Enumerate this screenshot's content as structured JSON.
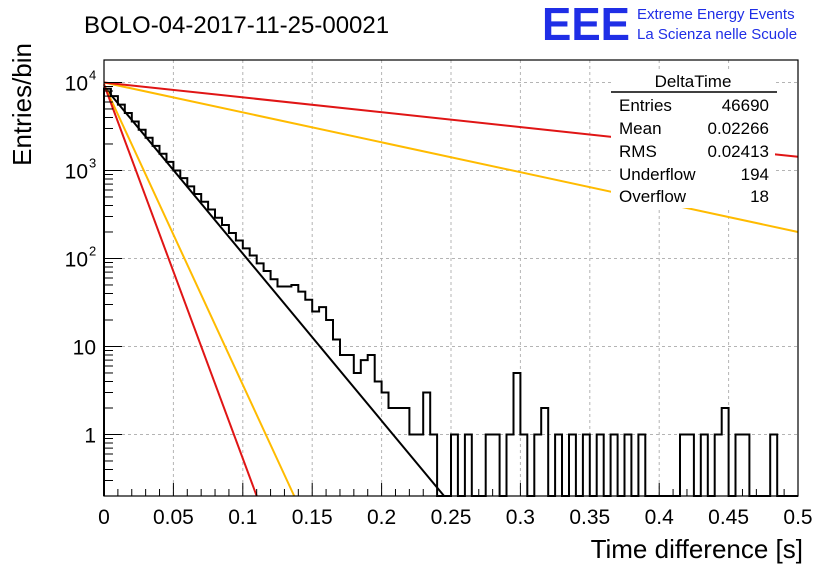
{
  "page": {
    "title": "BOLO-04-2017-11-25-00021"
  },
  "brand": {
    "logo_text": "EEE",
    "line1": "Extreme Energy Events",
    "line2": "La Scienza nelle Scuole",
    "color": "#1f2ee6"
  },
  "stats": {
    "title": "DeltaTime",
    "rows": [
      {
        "label": "Entries",
        "value": "46690"
      },
      {
        "label": "Mean",
        "value": "0.02266"
      },
      {
        "label": "RMS",
        "value": "0.02413"
      },
      {
        "label": "Underflow",
        "value": "194"
      },
      {
        "label": "Overflow",
        "value": "18"
      }
    ]
  },
  "chart_data": {
    "type": "line",
    "title": "BOLO-04-2017-11-25-00021",
    "xlabel": "Time difference [s]",
    "ylabel": "Entries/bin",
    "xlim": [
      0,
      0.5
    ],
    "ylim": [
      0.2,
      18000
    ],
    "yscale": "log",
    "grid": true,
    "xticks": [
      "0",
      "0.05",
      "0.1",
      "0.15",
      "0.2",
      "0.25",
      "0.3",
      "0.35",
      "0.4",
      "0.45",
      "0.5"
    ],
    "yticks": [
      {
        "value": 1,
        "label": "1"
      },
      {
        "value": 10,
        "label": "10"
      },
      {
        "value": 100,
        "label": "10",
        "sup": "2"
      },
      {
        "value": 1000,
        "label": "10",
        "sup": "3"
      },
      {
        "value": 10000,
        "label": "10",
        "sup": "4"
      }
    ],
    "histogram": {
      "color": "#000000",
      "bin_width": 0.005,
      "x": [
        0.0025,
        0.0075,
        0.0125,
        0.0175,
        0.0225,
        0.0275,
        0.0325,
        0.0375,
        0.0425,
        0.0475,
        0.0525,
        0.0575,
        0.0625,
        0.0675,
        0.0725,
        0.0775,
        0.0825,
        0.0875,
        0.0925,
        0.0975,
        0.1025,
        0.1075,
        0.1125,
        0.1175,
        0.1225,
        0.1275,
        0.1325,
        0.1375,
        0.1425,
        0.1475,
        0.1525,
        0.1575,
        0.1625,
        0.1675,
        0.1725,
        0.1775,
        0.1825,
        0.1875,
        0.1925,
        0.1975,
        0.2025,
        0.2075,
        0.2125,
        0.2175,
        0.2225,
        0.2275,
        0.2325,
        0.2375,
        0.2425,
        0.2475,
        0.2525,
        0.2575,
        0.2625,
        0.2675,
        0.2725,
        0.2775,
        0.2825,
        0.2875,
        0.2925,
        0.2975,
        0.3025,
        0.3075,
        0.3125,
        0.3175,
        0.3225,
        0.3275,
        0.3325,
        0.3375,
        0.3425,
        0.3475,
        0.3525,
        0.3575,
        0.3625,
        0.3675,
        0.3725,
        0.3775,
        0.3825,
        0.3875,
        0.3925,
        0.3975,
        0.4025,
        0.4075,
        0.4125,
        0.4175,
        0.4225,
        0.4275,
        0.4325,
        0.4375,
        0.4425,
        0.4475,
        0.4525,
        0.4575,
        0.4625,
        0.4675,
        0.4725,
        0.4775,
        0.4825,
        0.4875,
        0.4925,
        0.4975
      ],
      "y": [
        8500,
        7000,
        5600,
        4500,
        3600,
        2900,
        2350,
        1900,
        1550,
        1250,
        1000,
        820,
        660,
        540,
        440,
        360,
        290,
        240,
        195,
        160,
        130,
        108,
        88,
        72,
        58,
        48,
        48,
        50,
        42,
        34,
        25,
        28,
        20,
        12,
        8,
        8,
        5,
        7,
        8,
        4,
        3,
        2,
        2,
        2,
        1,
        1,
        3,
        1,
        0,
        0,
        1,
        0,
        1,
        0,
        0,
        1,
        1,
        0,
        1,
        5,
        1,
        0,
        1,
        2,
        0,
        1,
        0,
        1,
        0,
        1,
        0,
        1,
        0,
        1,
        0,
        1,
        0,
        1,
        0,
        0,
        0,
        0,
        0,
        1,
        1,
        0,
        1,
        0,
        1,
        2,
        0,
        1,
        1,
        0,
        0,
        0,
        1,
        0,
        0,
        0
      ]
    },
    "series": [
      {
        "color": "#000000",
        "x": [
          0,
          0.245
        ],
        "y": [
          9000,
          0.2
        ]
      },
      {
        "color": "#ffbb00",
        "x": [
          0,
          0.137
        ],
        "y": [
          9500,
          0.2
        ]
      },
      {
        "color": "#e01515",
        "x": [
          0,
          0.11
        ],
        "y": [
          9500,
          0.2
        ]
      },
      {
        "color": "#ffbb00",
        "x": [
          0,
          0.5
        ],
        "y": [
          10000,
          200
        ]
      },
      {
        "color": "#e01515",
        "x": [
          0,
          0.5
        ],
        "y": [
          10000,
          1430
        ]
      }
    ]
  }
}
